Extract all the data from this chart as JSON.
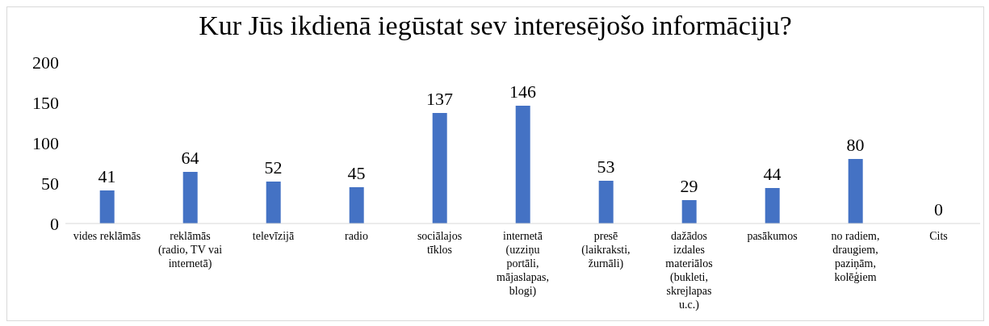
{
  "chart_data": {
    "type": "bar",
    "title": "Kur Jūs ikdienā iegūstat sev interesējošo informāciju?",
    "categories": [
      "vides reklāmās",
      "reklāmās (radio, TV vai internetā)",
      "televīzijā",
      "radio",
      "sociālajos tīklos",
      "internetā (uzziņu portāli, mājaslapas, blogi)",
      "presē (laikraksti, žurnāli)",
      "dažādos izdales materiālos (bukleti, skrejlapas u.c.)",
      "pasākumos",
      "no radiem, draugiem, paziņām, kolēģiem",
      "Cits"
    ],
    "values": [
      41,
      64,
      52,
      45,
      137,
      146,
      53,
      29,
      44,
      80,
      0
    ],
    "color": "#4472c4",
    "ylim": [
      0,
      200
    ],
    "yticks": [
      0,
      50,
      100,
      150,
      200
    ],
    "grid": false,
    "data_labels": true,
    "legend": false
  }
}
